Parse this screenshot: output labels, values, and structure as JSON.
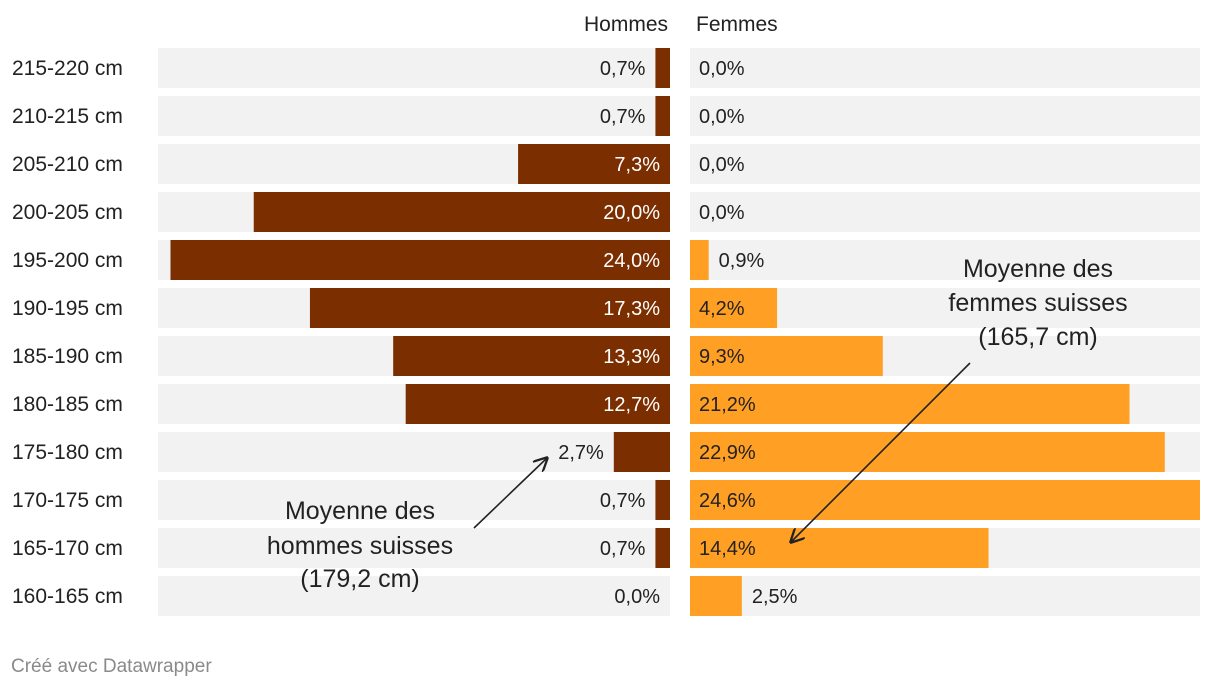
{
  "chart_data": {
    "type": "bar",
    "layout": "diverging-butterfly",
    "categories": [
      "215-220 cm",
      "210-215 cm",
      "205-210 cm",
      "200-205 cm",
      "195-200 cm",
      "190-195 cm",
      "185-190 cm",
      "180-185 cm",
      "175-180 cm",
      "170-175 cm",
      "165-170 cm",
      "160-165 cm"
    ],
    "series": [
      {
        "name": "Hommes",
        "color": "#7b2f00",
        "values": [
          0.7,
          0.7,
          7.3,
          20.0,
          24.0,
          17.3,
          13.3,
          12.7,
          2.7,
          0.7,
          0.7,
          0.0
        ],
        "labels": [
          "0,7%",
          "0,7%",
          "7,3%",
          "20,0%",
          "24,0%",
          "17,3%",
          "13,3%",
          "12,7%",
          "2,7%",
          "0,7%",
          "0,7%",
          "0,0%"
        ]
      },
      {
        "name": "Femmes",
        "color": "#ff9f24",
        "values": [
          0.0,
          0.0,
          0.0,
          0.0,
          0.9,
          4.2,
          9.3,
          21.2,
          22.9,
          24.6,
          14.4,
          2.5
        ],
        "labels": [
          "0,0%",
          "0,0%",
          "0,0%",
          "0,0%",
          "0,9%",
          "4,2%",
          "9,3%",
          "21,2%",
          "22,9%",
          "24,6%",
          "14,4%",
          "2,5%"
        ]
      }
    ],
    "xlim": [
      0,
      24.6
    ],
    "background_band_color": "#f2f2f2",
    "annotations": [
      {
        "lines": [
          "Moyenne des",
          "hommes suisses",
          "(179,2 cm)"
        ],
        "series": "Hommes",
        "target_category": "175-180 cm"
      },
      {
        "lines": [
          "Moyenne des",
          "femmes suisses",
          "(165,7 cm)"
        ],
        "series": "Femmes",
        "target_category": "165-170 cm"
      }
    ]
  },
  "footer": "Créé avec Datawrapper"
}
